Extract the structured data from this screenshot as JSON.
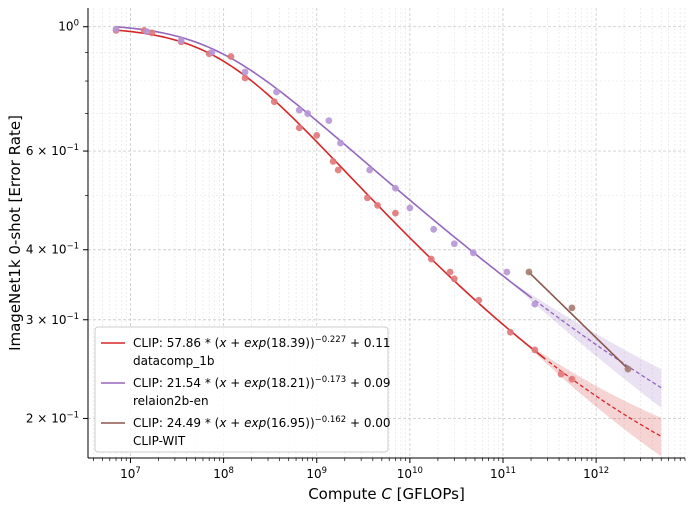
{
  "chart_data": {
    "type": "scatter",
    "xscale": "log",
    "yscale": "log",
    "xlabel": "Compute C [GFLOPs]",
    "ylabel": "ImageNet1k 0-shot [Error Rate]",
    "xlim": [
      3500000,
      9000000000000
    ],
    "ylim": [
      0.17,
      1.08
    ],
    "grid": true,
    "legend_position": "bottom-left",
    "xticks": [
      {
        "value": 10000000,
        "base": "10",
        "exp": "7"
      },
      {
        "value": 100000000,
        "base": "10",
        "exp": "8"
      },
      {
        "value": 1000000000,
        "base": "10",
        "exp": "9"
      },
      {
        "value": 10000000000,
        "base": "10",
        "exp": "10"
      },
      {
        "value": 100000000000,
        "base": "10",
        "exp": "11"
      },
      {
        "value": 1000000000000,
        "base": "10",
        "exp": "12"
      }
    ],
    "yticks": [
      {
        "value": 1.0,
        "base": "10",
        "exp": "0",
        "prefix": ""
      },
      {
        "value": 0.6,
        "base": "10",
        "exp": "−1",
        "prefix": "6 × "
      },
      {
        "value": 0.4,
        "base": "10",
        "exp": "−1",
        "prefix": "4 × "
      },
      {
        "value": 0.3,
        "base": "10",
        "exp": "−1",
        "prefix": "3 × "
      },
      {
        "value": 0.2,
        "base": "10",
        "exp": "−1",
        "prefix": "2 × "
      }
    ],
    "series": [
      {
        "name": "datacomp_1b",
        "color": "#d62728",
        "point_color": "#e0787a",
        "fit": {
          "A": 57.86,
          "B": 18.39,
          "alpha": 0.227,
          "E": 0.11
        },
        "fit_label": "CLIP: 57.86 * (x + exp(18.39))^{-0.227} + 0.11",
        "fit_range": [
          7000000,
          5000000000000
        ],
        "extrapolate_from": 300000000000,
        "band": true,
        "points": [
          [
            7000000,
            0.985
          ],
          [
            14000000,
            0.985
          ],
          [
            17000000,
            0.975
          ],
          [
            35000000,
            0.94
          ],
          [
            70000000,
            0.895
          ],
          [
            120000000,
            0.885
          ],
          [
            170000000,
            0.81
          ],
          [
            350000000,
            0.735
          ],
          [
            650000000,
            0.66
          ],
          [
            1000000000,
            0.64
          ],
          [
            1500000000,
            0.575
          ],
          [
            1700000000,
            0.555
          ],
          [
            3500000000,
            0.495
          ],
          [
            4500000000,
            0.48
          ],
          [
            7000000000,
            0.465
          ],
          [
            17000000000,
            0.385
          ],
          [
            27000000000,
            0.365
          ],
          [
            30000000000,
            0.355
          ],
          [
            55000000000,
            0.325
          ],
          [
            120000000000,
            0.285
          ],
          [
            220000000000,
            0.265
          ],
          [
            420000000000,
            0.24
          ],
          [
            550000000000,
            0.235
          ]
        ]
      },
      {
        "name": "relaion2b-en",
        "color": "#9467bd",
        "point_color": "#b696d6",
        "fit": {
          "A": 21.54,
          "B": 18.21,
          "alpha": 0.173,
          "E": 0.09
        },
        "fit_label": "CLIP: 21.54 * (x + exp(18.21))^{-0.173} + 0.09",
        "fit_range": [
          7000000,
          5000000000000
        ],
        "extrapolate_from": 220000000000,
        "band": true,
        "points": [
          [
            7000000,
            0.99
          ],
          [
            15000000,
            0.98
          ],
          [
            35000000,
            0.945
          ],
          [
            75000000,
            0.9
          ],
          [
            170000000,
            0.83
          ],
          [
            370000000,
            0.765
          ],
          [
            650000000,
            0.71
          ],
          [
            800000000,
            0.7
          ],
          [
            1350000000,
            0.68
          ],
          [
            1800000000,
            0.62
          ],
          [
            3700000000,
            0.555
          ],
          [
            7000000000,
            0.515
          ],
          [
            10000000000,
            0.475
          ],
          [
            18000000000,
            0.435
          ],
          [
            30000000000,
            0.41
          ],
          [
            48000000000,
            0.395
          ],
          [
            110000000000,
            0.365
          ],
          [
            220000000000,
            0.32
          ]
        ]
      },
      {
        "name": "CLIP-WIT",
        "color": "#8c564b",
        "point_color": "#a57b6f",
        "fit": {
          "A": 24.49,
          "B": 16.95,
          "alpha": 0.162,
          "E": 0.0
        },
        "fit_label": "CLIP: 24.49 * (x + exp(16.95))^{-0.162} + 0.00",
        "fit_range": [
          190000000000,
          2200000000000
        ],
        "extrapolate_from": null,
        "band": false,
        "points": [
          [
            190000000000,
            0.365
          ],
          [
            550000000000,
            0.315
          ],
          [
            2200000000000,
            0.245
          ]
        ]
      }
    ],
    "legend": [
      {
        "prefix": "CLIP: 57.86 * (",
        "math": "x + exp",
        "arg": "(18.39))",
        "exp": "−0.227",
        "suffix": " + 0.11",
        "sub": "datacomp_1b"
      },
      {
        "prefix": "CLIP: 21.54 * (",
        "math": "x + exp",
        "arg": "(18.21))",
        "exp": "−0.173",
        "suffix": " + 0.09",
        "sub": "relaion2b-en"
      },
      {
        "prefix": "CLIP: 24.49 * (",
        "math": "x + exp",
        "arg": "(16.95))",
        "exp": "−0.162",
        "suffix": " + 0.00",
        "sub": "CLIP-WIT"
      }
    ]
  }
}
